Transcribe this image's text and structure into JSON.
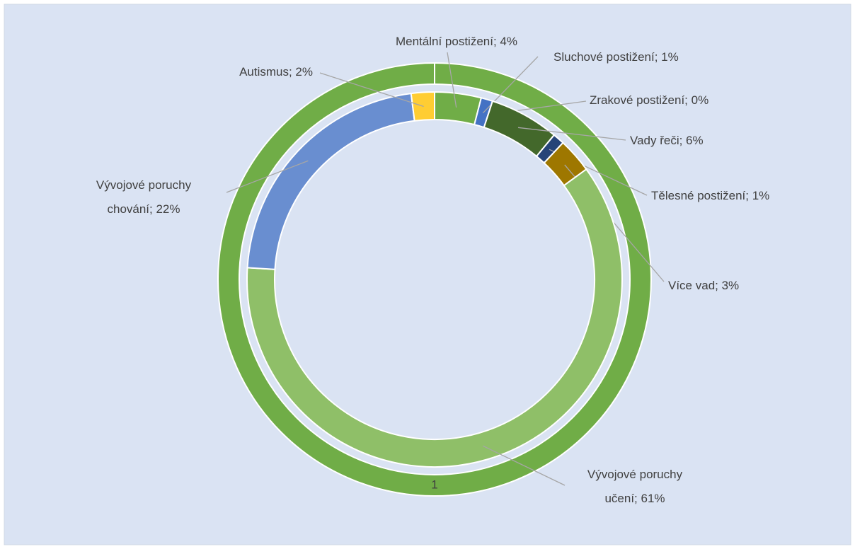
{
  "chart_data": {
    "type": "doughnut",
    "outer": {
      "values": [
        1
      ],
      "color": "#70ad47"
    },
    "inner": {
      "values": [
        4,
        1,
        0,
        6,
        1,
        3,
        61,
        22,
        2
      ],
      "value_labels": [
        "Mentální postižení; 4%",
        "Sluchové postižení; 1%",
        "Zrakové postižení; 0%",
        "Vady řeči; 6%",
        "Tělesné postižení; 1%",
        "Více vad; 3%",
        "Vývojové poruchy\nučení; 61%",
        "Vývojové poruchy\nchování; 22%",
        "Autismus; 2%"
      ],
      "colors": [
        "#70ad47",
        "#4472c4",
        "#ffc000",
        "#43682b",
        "#264478",
        "#9e7700",
        "#8fbf68",
        "#698ed0",
        "#ffcd33"
      ]
    }
  }
}
